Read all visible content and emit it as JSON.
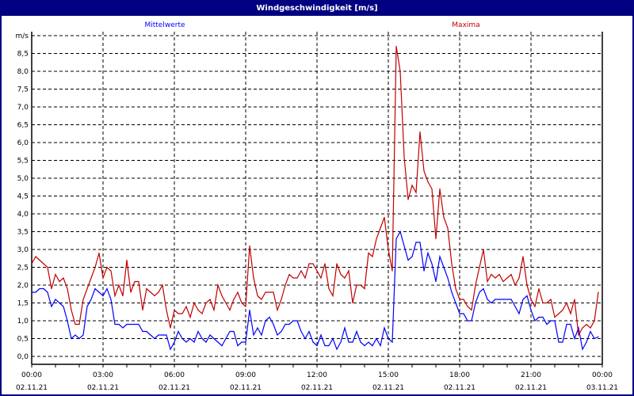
{
  "window": {
    "title": "Windgeschwindigkeit [m/s]"
  },
  "chart_data": {
    "type": "line",
    "title": "Windgeschwindigkeit [m/s]",
    "ylabel": "m/s",
    "ylim": [
      0,
      9
    ],
    "yticks": [
      "0,0",
      "0,5",
      "1,0",
      "1,5",
      "2,0",
      "2,5",
      "3,0",
      "3,5",
      "4,0",
      "4,5",
      "5,0",
      "5,5",
      "6,0",
      "6,5",
      "7,0",
      "7,5",
      "8,0",
      "8,5",
      "m/s"
    ],
    "xlim_hours": [
      0,
      24
    ],
    "x_interval_minutes": 10,
    "x_start": "02.11.21 00:00",
    "xticks": [
      {
        "time": "00:00",
        "date": "02.11.21"
      },
      {
        "time": "03:00",
        "date": "02.11.21"
      },
      {
        "time": "06:00",
        "date": "02.11.21"
      },
      {
        "time": "09:00",
        "date": "02.11.21"
      },
      {
        "time": "12:00",
        "date": "02.11.21"
      },
      {
        "time": "15:00",
        "date": "02.11.21"
      },
      {
        "time": "18:00",
        "date": "02.11.21"
      },
      {
        "time": "21:00",
        "date": "02.11.21"
      },
      {
        "time": "00:00",
        "date": "03.11.21"
      }
    ],
    "grid": true,
    "legend_placement": "top",
    "series": [
      {
        "name": "Mittelwerte",
        "color": "#0000ff",
        "values": [
          1.8,
          1.8,
          1.9,
          1.9,
          1.8,
          1.4,
          1.6,
          1.5,
          1.4,
          1.0,
          0.5,
          0.6,
          0.5,
          0.6,
          1.4,
          1.6,
          1.9,
          1.8,
          1.7,
          1.9,
          1.6,
          0.9,
          0.9,
          0.8,
          0.9,
          0.9,
          0.9,
          0.9,
          0.7,
          0.7,
          0.6,
          0.5,
          0.6,
          0.6,
          0.6,
          0.2,
          0.4,
          0.7,
          0.5,
          0.4,
          0.5,
          0.4,
          0.7,
          0.5,
          0.4,
          0.6,
          0.5,
          0.4,
          0.3,
          0.5,
          0.7,
          0.7,
          0.3,
          0.4,
          0.4,
          1.3,
          0.6,
          0.8,
          0.6,
          1.0,
          1.1,
          0.9,
          0.6,
          0.7,
          0.9,
          0.9,
          1.0,
          1.0,
          0.7,
          0.5,
          0.7,
          0.4,
          0.3,
          0.6,
          0.3,
          0.3,
          0.5,
          0.2,
          0.4,
          0.8,
          0.4,
          0.4,
          0.7,
          0.4,
          0.3,
          0.4,
          0.3,
          0.5,
          0.3,
          0.8,
          0.5,
          0.4,
          3.3,
          3.5,
          3.1,
          2.7,
          2.8,
          3.2,
          3.2,
          2.4,
          2.9,
          2.6,
          2.1,
          2.8,
          2.5,
          2.2,
          1.8,
          1.5,
          1.2,
          1.2,
          1.0,
          1.0,
          1.5,
          1.8,
          1.9,
          1.6,
          1.5,
          1.6,
          1.6,
          1.6,
          1.6,
          1.6,
          1.4,
          1.2,
          1.6,
          1.7,
          1.3,
          1.0,
          1.1,
          1.1,
          0.9,
          1.0,
          1.0,
          0.4,
          0.4,
          0.9,
          0.9,
          0.5,
          0.8,
          0.2,
          0.4,
          0.7,
          0.5,
          0.55
        ]
      },
      {
        "name": "Maxima",
        "color": "#c00000",
        "values": [
          2.6,
          2.8,
          2.7,
          2.6,
          2.5,
          1.9,
          2.3,
          2.1,
          2.2,
          1.9,
          1.3,
          0.9,
          0.9,
          1.6,
          1.9,
          2.2,
          2.5,
          2.9,
          2.2,
          2.5,
          2.4,
          1.7,
          2.0,
          1.7,
          2.7,
          1.8,
          2.1,
          2.1,
          1.3,
          1.9,
          1.8,
          1.7,
          1.8,
          2.0,
          1.3,
          0.8,
          1.3,
          1.2,
          1.2,
          1.4,
          1.1,
          1.5,
          1.3,
          1.2,
          1.5,
          1.6,
          1.3,
          2.0,
          1.7,
          1.5,
          1.3,
          1.6,
          1.8,
          1.5,
          1.4,
          3.1,
          2.2,
          1.7,
          1.6,
          1.8,
          1.8,
          1.8,
          1.3,
          1.6,
          2.0,
          2.3,
          2.2,
          2.2,
          2.4,
          2.2,
          2.6,
          2.6,
          2.4,
          2.2,
          2.6,
          1.9,
          1.7,
          2.6,
          2.3,
          2.2,
          2.4,
          1.5,
          2.0,
          2.0,
          1.9,
          2.9,
          2.8,
          3.3,
          3.6,
          3.9,
          3.0,
          2.4,
          8.7,
          8.0,
          5.6,
          4.4,
          4.8,
          4.6,
          6.3,
          5.2,
          4.9,
          4.7,
          3.3,
          4.7,
          3.9,
          3.6,
          2.6,
          1.9,
          1.6,
          1.6,
          1.4,
          1.3,
          2.0,
          2.5,
          3.0,
          2.1,
          2.3,
          2.2,
          2.3,
          2.1,
          2.2,
          2.3,
          2.0,
          2.2,
          2.8,
          2.0,
          1.6,
          1.4,
          1.9,
          1.5,
          1.5,
          1.6,
          1.1,
          1.2,
          1.3,
          1.5,
          1.2,
          1.6,
          0.6,
          0.8,
          0.9,
          0.8,
          1.0,
          1.8
        ]
      }
    ]
  }
}
